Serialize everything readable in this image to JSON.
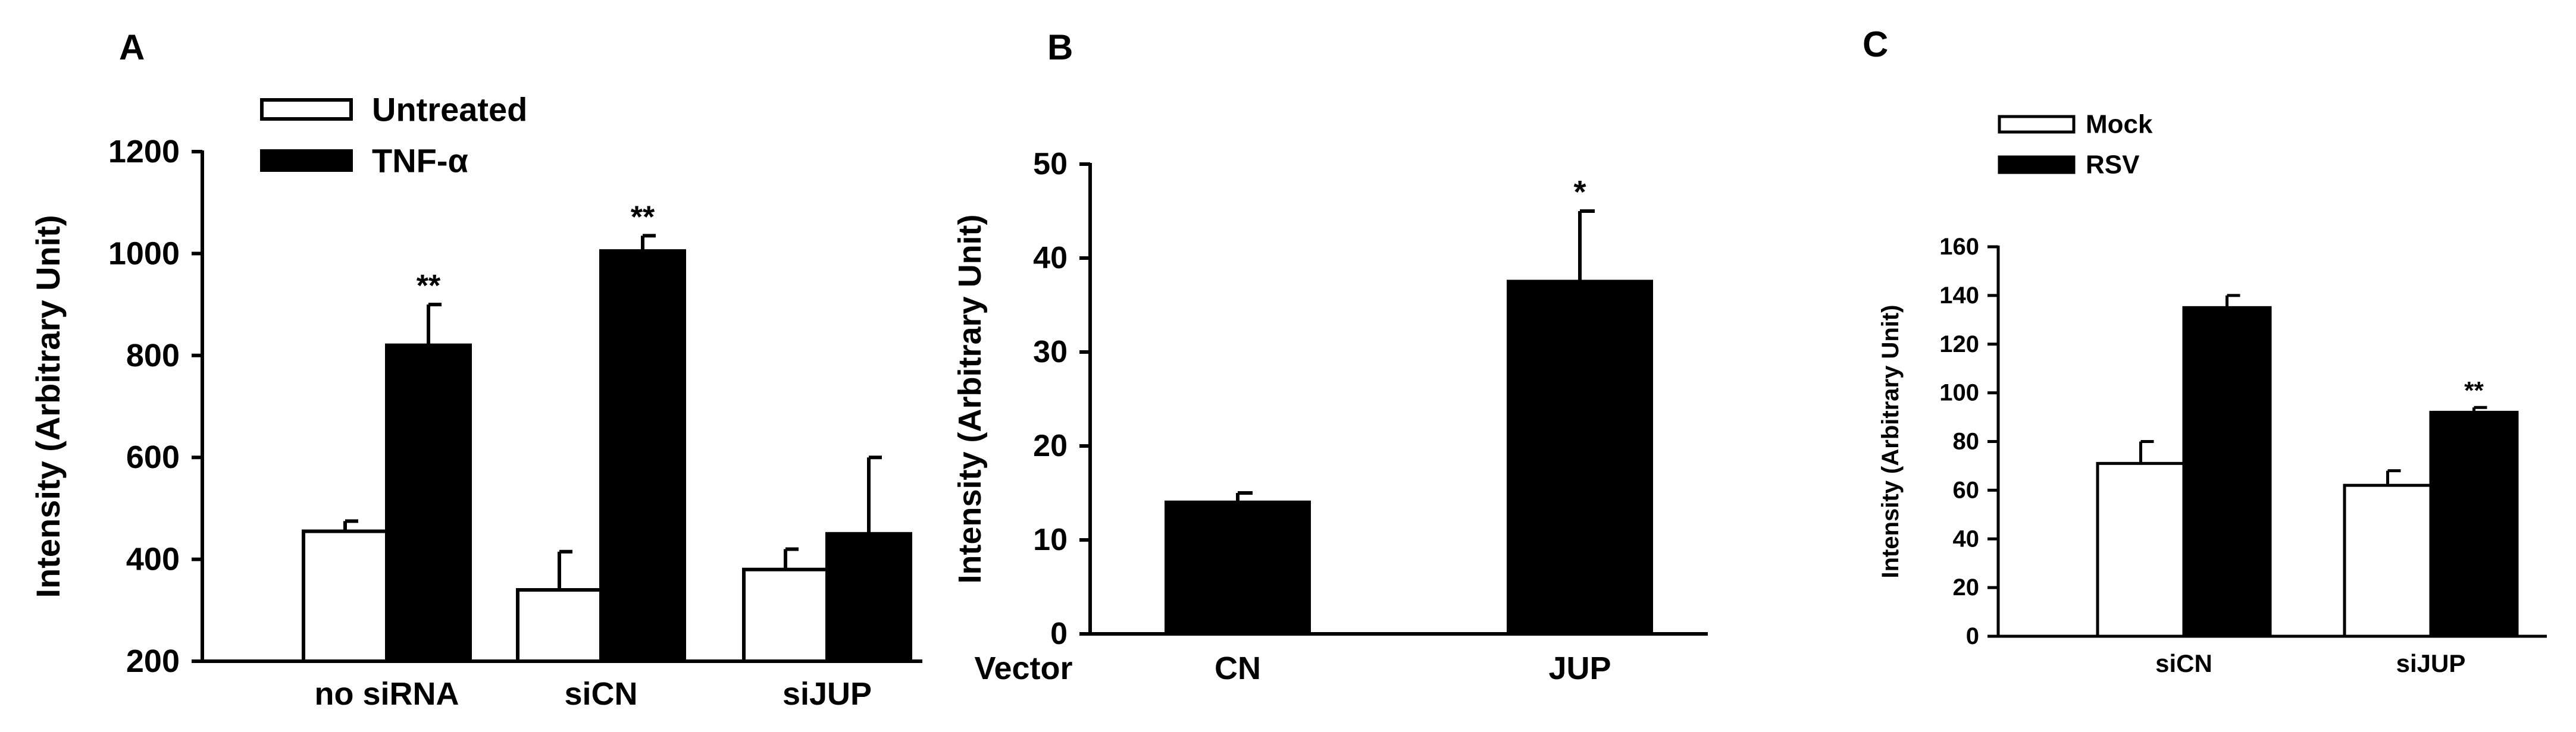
{
  "chart_data": [
    {
      "panel": "A",
      "type": "bar",
      "ylabel": "Intensity (Arbitrary Unit)",
      "ylim": [
        200,
        1200
      ],
      "yticks": [
        200,
        400,
        600,
        800,
        1000,
        1200
      ],
      "categories": [
        "no siRNA",
        "siCN",
        "siJUP"
      ],
      "series": [
        {
          "name": "Untreated",
          "color": "#ffffff",
          "values": [
            455,
            340,
            380
          ],
          "errors": [
            20,
            75,
            40
          ]
        },
        {
          "name": "TNF-α",
          "color": "#000000",
          "values": [
            820,
            1005,
            450
          ],
          "errors": [
            80,
            30,
            150
          ]
        }
      ],
      "annotations": [
        {
          "category": "no siRNA",
          "series": "TNF-α",
          "text": "**"
        },
        {
          "category": "siCN",
          "series": "TNF-α",
          "text": "**"
        }
      ],
      "legend_position": "top"
    },
    {
      "panel": "B",
      "type": "bar",
      "ylabel": "Intensity (Arbitrary Unit)",
      "xlabel": "Vector",
      "ylim": [
        0,
        50
      ],
      "yticks": [
        0,
        10,
        20,
        30,
        40,
        50
      ],
      "categories": [
        "CN",
        "JUP"
      ],
      "series": [
        {
          "color": "#000000",
          "values": [
            14,
            37.5
          ],
          "errors": [
            1,
            7.5
          ]
        }
      ],
      "annotations": [
        {
          "category": "JUP",
          "text": "*"
        }
      ]
    },
    {
      "panel": "C",
      "type": "bar",
      "ylabel": "Intensity (Arbitrary Unit)",
      "ylim": [
        0,
        160
      ],
      "yticks": [
        0,
        20,
        40,
        60,
        80,
        100,
        120,
        140,
        160
      ],
      "categories": [
        "siCN",
        "siJUP"
      ],
      "series": [
        {
          "name": "Mock",
          "color": "#ffffff",
          "values": [
            71,
            62
          ],
          "errors": [
            9,
            6
          ]
        },
        {
          "name": "RSV",
          "color": "#000000",
          "values": [
            135,
            92
          ],
          "errors": [
            5,
            2
          ]
        }
      ],
      "annotations": [
        {
          "category": "siJUP",
          "series": "RSV",
          "text": "**"
        }
      ],
      "legend_position": "top-left"
    }
  ]
}
